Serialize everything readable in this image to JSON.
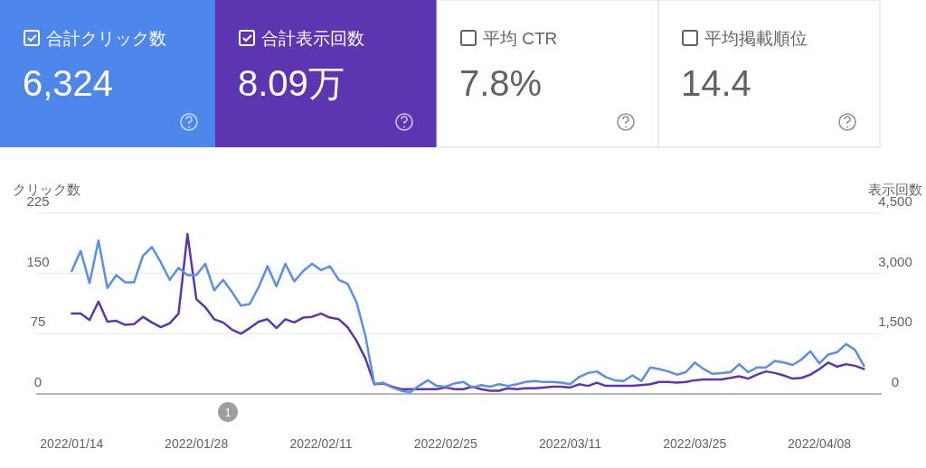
{
  "chart_data": [
    {
      "type": "other",
      "annotations": [
        "合計クリック数",
        "6,324",
        "合計表示回数",
        "8.09万",
        "平均 CTR",
        "7.8%",
        "平均掲載順位",
        "14.4"
      ]
    },
    {
      "type": "line",
      "ylabel": "クリック数",
      "y2label": "表示回数",
      "grid": "y",
      "marker": "none",
      "line_style": "solid",
      "x": [
        "2022-01-14",
        "2022-01-15",
        "2022-01-16",
        "2022-01-17",
        "2022-01-18",
        "2022-01-19",
        "2022-01-20",
        "2022-01-21",
        "2022-01-22",
        "2022-01-23",
        "2022-01-24",
        "2022-01-25",
        "2022-01-26",
        "2022-01-27",
        "2022-01-28",
        "2022-01-29",
        "2022-01-30",
        "2022-01-31",
        "2022-02-01",
        "2022-02-02",
        "2022-02-03",
        "2022-02-04",
        "2022-02-05",
        "2022-02-06",
        "2022-02-07",
        "2022-02-08",
        "2022-02-09",
        "2022-02-10",
        "2022-02-11",
        "2022-02-12",
        "2022-02-13",
        "2022-02-14",
        "2022-02-15",
        "2022-02-16",
        "2022-02-17",
        "2022-02-18",
        "2022-02-19",
        "2022-02-20",
        "2022-02-21",
        "2022-02-22",
        "2022-02-23",
        "2022-02-24",
        "2022-02-25",
        "2022-02-26",
        "2022-02-27",
        "2022-02-28",
        "2022-03-01",
        "2022-03-02",
        "2022-03-03",
        "2022-03-04",
        "2022-03-05",
        "2022-03-06",
        "2022-03-07",
        "2022-03-08",
        "2022-03-09",
        "2022-03-10",
        "2022-03-11",
        "2022-03-12",
        "2022-03-13",
        "2022-03-14",
        "2022-03-15",
        "2022-03-16",
        "2022-03-17",
        "2022-03-18",
        "2022-03-19",
        "2022-03-20",
        "2022-03-21",
        "2022-03-22",
        "2022-03-23",
        "2022-03-24",
        "2022-03-25",
        "2022-03-26",
        "2022-03-27",
        "2022-03-28",
        "2022-03-29",
        "2022-03-30",
        "2022-03-31",
        "2022-04-01",
        "2022-04-02",
        "2022-04-03",
        "2022-04-04",
        "2022-04-05",
        "2022-04-06",
        "2022-04-07",
        "2022-04-08",
        "2022-04-09",
        "2022-04-10",
        "2022-04-11",
        "2022-04-12",
        "2022-04-13"
      ],
      "series": [
        {
          "color": "#5b8fe3",
          "values": [
            153,
            178,
            138,
            191,
            132,
            148,
            139,
            139,
            172,
            183,
            164,
            142,
            157,
            148,
            148,
            162,
            129,
            142,
            127,
            110,
            112,
            133,
            159,
            134,
            162,
            140,
            153,
            162,
            154,
            159,
            142,
            137,
            114,
            72,
            12,
            14,
            8,
            4,
            2,
            10,
            17,
            10,
            9,
            13,
            15,
            8,
            11,
            9,
            12,
            10,
            12,
            15,
            16,
            15,
            15,
            14,
            12,
            21,
            26,
            28,
            21,
            17,
            16,
            23,
            16,
            33,
            31,
            28,
            24,
            27,
            39,
            31,
            25,
            26,
            27,
            37,
            27,
            33,
            33,
            41,
            39,
            36,
            43,
            53,
            38,
            49,
            52,
            62,
            55,
            35
          ]
        },
        {
          "color": "#5e35b1",
          "axis": "y2",
          "values": [
            2000,
            2000,
            1840,
            2300,
            1800,
            1820,
            1720,
            1740,
            1920,
            1780,
            1660,
            1760,
            2000,
            3980,
            2360,
            2160,
            1860,
            1780,
            1600,
            1500,
            1640,
            1800,
            1860,
            1640,
            1860,
            1780,
            1900,
            1920,
            2000,
            1900,
            1860,
            1660,
            1320,
            880,
            240,
            260,
            180,
            120,
            120,
            120,
            120,
            120,
            160,
            120,
            120,
            180,
            120,
            80,
            80,
            140,
            120,
            140,
            140,
            160,
            180,
            180,
            160,
            240,
            200,
            280,
            200,
            200,
            200,
            200,
            220,
            240,
            300,
            300,
            280,
            300,
            340,
            360,
            360,
            360,
            400,
            440,
            380,
            480,
            560,
            520,
            460,
            380,
            400,
            480,
            620,
            780,
            680,
            740,
            700,
            620
          ]
        }
      ],
      "xlim": [
        "2022-01-10",
        "2022-04-15"
      ],
      "xticks": [
        {
          "value": "2022-01-14",
          "label": "2022/01/14"
        },
        {
          "value": "2022-01-28",
          "label": "2022/01/28"
        },
        {
          "value": "2022-02-11",
          "label": "2022/02/11"
        },
        {
          "value": "2022-02-25",
          "label": "2022/02/25"
        },
        {
          "value": "2022-03-11",
          "label": "2022/03/11"
        },
        {
          "value": "2022-03-25",
          "label": "2022/03/25"
        },
        {
          "value": "2022-04-08",
          "label": "2022/04/08"
        }
      ],
      "ylim": [
        0,
        225
      ],
      "yticks": [
        0,
        75,
        150,
        225
      ],
      "y2lim": [
        0,
        4500
      ],
      "y2ticks": [
        0,
        {
          "value": 1500,
          "label": "1,500"
        },
        {
          "value": 3000,
          "label": "3,000"
        },
        {
          "value": 4500,
          "label": "4,500"
        }
      ],
      "annotations": [
        "1"
      ]
    }
  ]
}
